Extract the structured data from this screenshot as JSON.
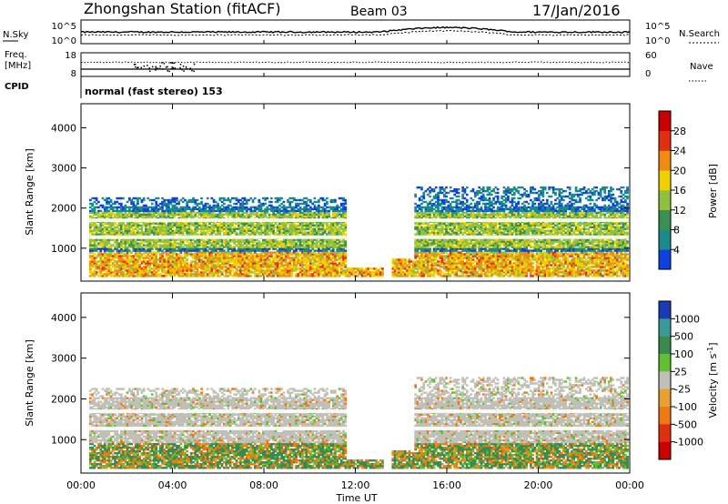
{
  "header": {
    "station": "Zhongshan Station (fitACF)",
    "beam": "Beam 03",
    "date": "17/Jan/2016"
  },
  "summary_panels": {
    "nsky_label": "N.Sky",
    "nsearch_label": "N.Search",
    "noise_ticks": [
      "10^5",
      "10^0"
    ],
    "freq_label_line1": "Freq.",
    "freq_label_line2": "[MHz]",
    "freq_ticks": [
      "18",
      "8"
    ],
    "nave_label": "Nave",
    "nave_ticks": [
      "60",
      "0"
    ],
    "cpid_label": "CPID",
    "cpid_text": "normal (fast stereo) 153"
  },
  "chart_data": [
    {
      "type": "heatmap",
      "title": "",
      "xlabel": "Time UT",
      "ylabel": "Slant Range [km]",
      "x_tick_labels": [
        "00:00",
        "04:00",
        "08:00",
        "12:00",
        "16:00",
        "20:00",
        "00:00"
      ],
      "xlim_hours": [
        0,
        24
      ],
      "y_tick_labels": [
        "1000",
        "2000",
        "3000",
        "4000"
      ],
      "ylim": [
        180,
        4600
      ],
      "colorbar": {
        "label": "Power [dB]",
        "ticks": [
          "4",
          "8",
          "12",
          "16",
          "20",
          "24",
          "28"
        ],
        "range": [
          0,
          32
        ],
        "colors": [
          "#1040e0",
          "#1a8a8a",
          "#3a9050",
          "#90c040",
          "#f0d000",
          "#f08a10",
          "#e03010",
          "#cc0000"
        ]
      }
    },
    {
      "type": "heatmap",
      "title": "",
      "xlabel": "Time UT",
      "ylabel": "Slant Range [km]",
      "x_tick_labels": [
        "00:00",
        "04:00",
        "08:00",
        "12:00",
        "16:00",
        "20:00",
        "00:00"
      ],
      "xlim_hours": [
        0,
        24
      ],
      "y_tick_labels": [
        "1000",
        "2000",
        "3000",
        "4000"
      ],
      "ylim": [
        180,
        4600
      ],
      "colorbar": {
        "label": "Velocity [m s^-1]",
        "ticks": [
          "1000",
          "500",
          "100",
          "25",
          "-25",
          "-100",
          "-500",
          "-1000"
        ],
        "colors": [
          "#1a3ab8",
          "#3a9a9a",
          "#3a8a50",
          "#60c030",
          "#c0c0b8",
          "#e8a030",
          "#f07810",
          "#e03010",
          "#cc0000"
        ]
      }
    }
  ],
  "echo_regions": [
    {
      "t0": 0.3,
      "t1": 11.6,
      "r0": 250,
      "r1": 2250,
      "kind": "main"
    },
    {
      "t0": 11.6,
      "t1": 13.2,
      "r0": 250,
      "r1": 500,
      "kind": "low"
    },
    {
      "t0": 14.5,
      "t1": 23.9,
      "r0": 250,
      "r1": 2500,
      "kind": "main"
    },
    {
      "t0": 13.5,
      "t1": 16.5,
      "r0": 250,
      "r1": 700,
      "kind": "low"
    }
  ]
}
